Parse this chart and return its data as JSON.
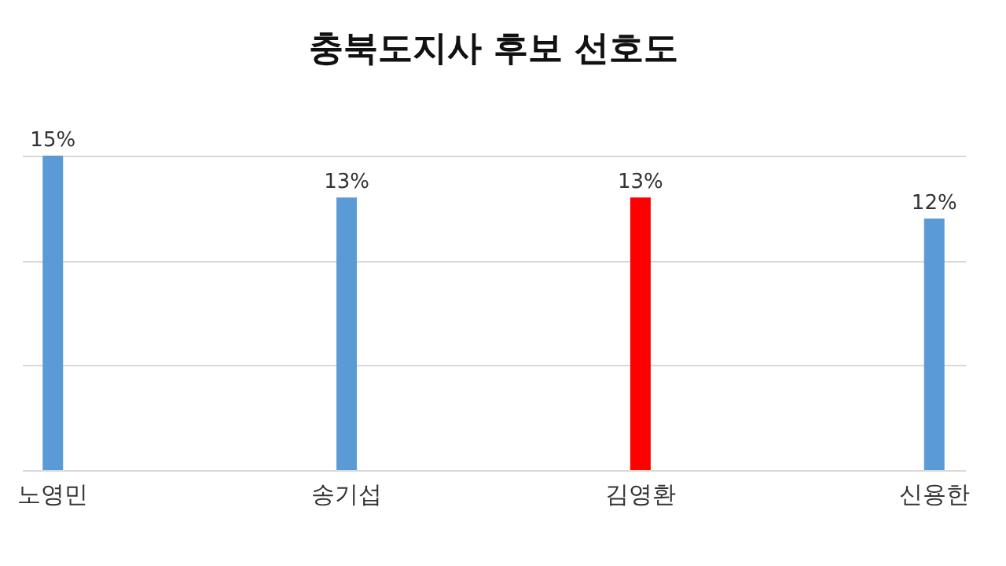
{
  "chart_data": {
    "type": "bar",
    "title": "충북도지사 후보 선호도",
    "categories": [
      "노영민",
      "송기섭",
      "김영환",
      "신용한"
    ],
    "values": [
      15,
      13,
      13,
      12
    ],
    "colors": [
      "#5b9bd5",
      "#5b9bd5",
      "#ff0000",
      "#5b9bd5"
    ],
    "value_labels": [
      "15%",
      "13%",
      "13%",
      "12%"
    ],
    "ylim": [
      0,
      15
    ],
    "yticks": [
      {
        "value": 0,
        "label": null
      },
      {
        "value": 5,
        "label": null
      },
      {
        "value": 10,
        "label": null
      },
      {
        "value": 15,
        "label": null
      }
    ],
    "grid": "y"
  }
}
